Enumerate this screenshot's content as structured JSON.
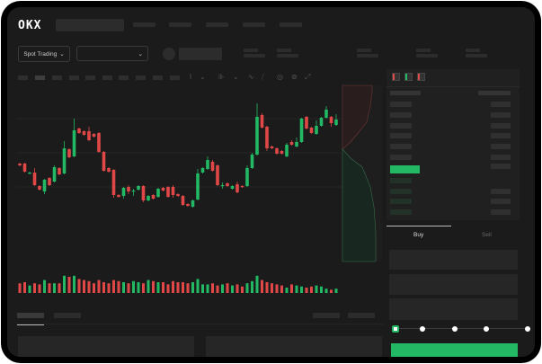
{
  "header": {
    "logo": "OKX",
    "nav_items": 5
  },
  "toolbar": {
    "market_button": "Spot Trading",
    "pair_dropdown": ""
  },
  "trade": {
    "tabs": [
      {
        "label": "Buy",
        "active": true
      },
      {
        "label": "Sell",
        "active": false
      }
    ],
    "slider_percent": 0,
    "slider_steps": [
      0,
      25,
      50,
      75,
      100
    ]
  },
  "colors": {
    "up": "#22b864",
    "down": "#e04848",
    "accent": "#22b864",
    "background": "#1b1b1b"
  },
  "icons": {
    "orderbook_modes": [
      "orderbook-both-icon",
      "orderbook-buy-icon",
      "orderbook-sell-icon"
    ],
    "tools": [
      "indicator-icon",
      "draw-icon",
      "screenshot-icon",
      "settings-icon",
      "fullscreen-icon"
    ]
  },
  "chart_data": {
    "type": "candlestick",
    "ohlc": [
      [
        118,
        119,
        115,
        116
      ],
      [
        118,
        119,
        108,
        109
      ],
      [
        107,
        109,
        106,
        108
      ],
      [
        108,
        113,
        93,
        94
      ],
      [
        93,
        94,
        88,
        89
      ],
      [
        87,
        101,
        84,
        100
      ],
      [
        102,
        103,
        93,
        94
      ],
      [
        98,
        116,
        97,
        114
      ],
      [
        113,
        114,
        105,
        106
      ],
      [
        107,
        143,
        106,
        135
      ],
      [
        134,
        135,
        124,
        125
      ],
      [
        126,
        168,
        125,
        155
      ],
      [
        157,
        158,
        151,
        152
      ],
      [
        154,
        155,
        149,
        150
      ],
      [
        154,
        159,
        143,
        144
      ],
      [
        151,
        152,
        147,
        148
      ],
      [
        152,
        153,
        130,
        131
      ],
      [
        131,
        132,
        109,
        110
      ],
      [
        113,
        114,
        108,
        109
      ],
      [
        111,
        112,
        80,
        83
      ],
      [
        83,
        84,
        80,
        81
      ],
      [
        82,
        92,
        79,
        91
      ],
      [
        92,
        94,
        84,
        87
      ],
      [
        87,
        90,
        82,
        88
      ],
      [
        89,
        94,
        88,
        93
      ],
      [
        93,
        94,
        75,
        77
      ],
      [
        77,
        83,
        76,
        82
      ],
      [
        83,
        84,
        78,
        79
      ],
      [
        81,
        91,
        80,
        90
      ],
      [
        91,
        92,
        87,
        88
      ],
      [
        92,
        93,
        80,
        81
      ],
      [
        92,
        94,
        80,
        83
      ],
      [
        84,
        85,
        81,
        82
      ],
      [
        82,
        83,
        71,
        72
      ],
      [
        73,
        74,
        70,
        71
      ],
      [
        70,
        78,
        69,
        77
      ],
      [
        78,
        112,
        77,
        107
      ],
      [
        108,
        114,
        107,
        113
      ],
      [
        112,
        126,
        111,
        122
      ],
      [
        120,
        122,
        109,
        110
      ],
      [
        116,
        117,
        93,
        94
      ],
      [
        93,
        97,
        90,
        94
      ],
      [
        96,
        97,
        92,
        93
      ],
      [
        90,
        94,
        89,
        93
      ],
      [
        95,
        98,
        85,
        86
      ],
      [
        93,
        94,
        91,
        92
      ],
      [
        93,
        116,
        92,
        113
      ],
      [
        113,
        130,
        112,
        128
      ],
      [
        128,
        185,
        127,
        170
      ],
      [
        172,
        174,
        157,
        158
      ],
      [
        159,
        160,
        132,
        135
      ],
      [
        137,
        138,
        134,
        135
      ],
      [
        135,
        136,
        128,
        129
      ],
      [
        132,
        133,
        128,
        129
      ],
      [
        126,
        141,
        125,
        139
      ],
      [
        142,
        144,
        138,
        139
      ],
      [
        137,
        147,
        136,
        142
      ],
      [
        142,
        169,
        141,
        168
      ],
      [
        170,
        171,
        156,
        157
      ],
      [
        158,
        159,
        151,
        152
      ],
      [
        151,
        166,
        150,
        160
      ],
      [
        160,
        170,
        159,
        169
      ],
      [
        169,
        182,
        168,
        178
      ],
      [
        170,
        171,
        159,
        163
      ],
      [
        161,
        173,
        160,
        167
      ]
    ],
    "volume": [
      9,
      10,
      7,
      9,
      8,
      12,
      9,
      9,
      9,
      16,
      15,
      16,
      13,
      12,
      11,
      9,
      12,
      10,
      9,
      12,
      11,
      10,
      9,
      11,
      10,
      9,
      12,
      11,
      10,
      10,
      8,
      11,
      10,
      10,
      9,
      10,
      13,
      8,
      8,
      9,
      7,
      8,
      9,
      7,
      8,
      6,
      9,
      11,
      16,
      12,
      10,
      9,
      8,
      7,
      5,
      8,
      7,
      6,
      5,
      6,
      7,
      6,
      4,
      3,
      4
    ]
  }
}
